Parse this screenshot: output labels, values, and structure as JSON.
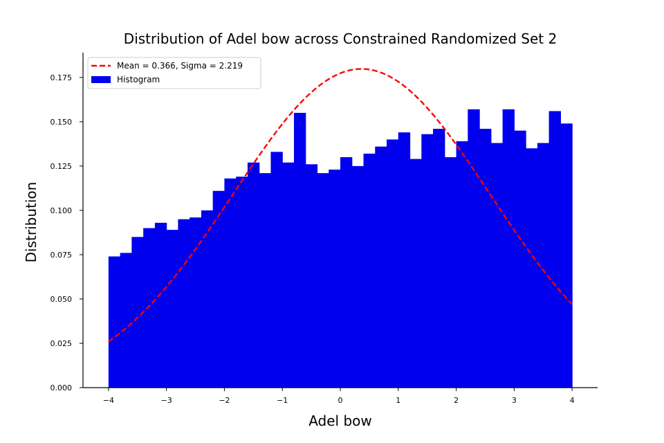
{
  "chart_data": {
    "type": "bar",
    "title": "Distribution of Adel bow across Constrained Randomized Set 2",
    "xlabel": "Adel bow",
    "ylabel": "Distribution",
    "xlim": [
      -4.44,
      4.44
    ],
    "ylim": [
      0,
      0.189
    ],
    "xticks": [
      -4,
      -3,
      -2,
      -1,
      0,
      1,
      2,
      3,
      4
    ],
    "xtick_labels": [
      "−4",
      "−3",
      "−2",
      "−1",
      "0",
      "1",
      "2",
      "3",
      "4"
    ],
    "yticks": [
      0.0,
      0.025,
      0.05,
      0.075,
      0.1,
      0.125,
      0.15,
      0.175
    ],
    "ytick_labels": [
      "0.000",
      "0.025",
      "0.050",
      "0.075",
      "0.100",
      "0.125",
      "0.150",
      "0.175"
    ],
    "grid": false,
    "legend_position": "top-left",
    "histogram": {
      "name": "Histogram",
      "color": "#0000ee",
      "bin_start": -4,
      "bin_width": 0.2,
      "values": [
        0.074,
        0.076,
        0.085,
        0.09,
        0.093,
        0.089,
        0.095,
        0.096,
        0.1,
        0.111,
        0.118,
        0.119,
        0.127,
        0.121,
        0.133,
        0.127,
        0.155,
        0.126,
        0.121,
        0.123,
        0.13,
        0.125,
        0.132,
        0.136,
        0.14,
        0.144,
        0.129,
        0.143,
        0.146,
        0.13,
        0.139,
        0.157,
        0.146,
        0.138,
        0.157,
        0.145,
        0.135,
        0.138,
        0.156,
        0.149
      ]
    },
    "normal_curve": {
      "name": "Mean = 0.366, Sigma = 2.219",
      "mean": 0.366,
      "sigma": 2.219,
      "color": "#ff0000",
      "style": "dashed",
      "x_range": [
        -4,
        4
      ]
    }
  }
}
